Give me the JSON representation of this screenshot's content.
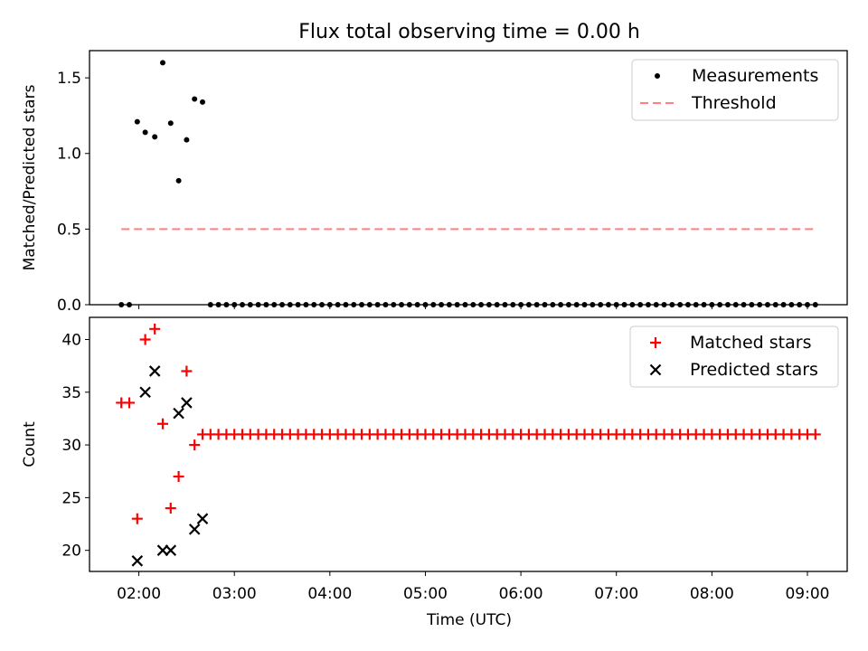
{
  "chart_data": {
    "type": "scatter",
    "title": "Flux total observing time = 0.00 h",
    "xlabel": "Time (UTC)",
    "x_unit": "hours UTC",
    "xlim": [
      "01:29",
      "09:25"
    ],
    "x_ticks": [
      {
        "t": "02:00",
        "label": "02:00"
      },
      {
        "t": "03:00",
        "label": "03:00"
      },
      {
        "t": "04:00",
        "label": "04:00"
      },
      {
        "t": "05:00",
        "label": "05:00"
      },
      {
        "t": "06:00",
        "label": "06:00"
      },
      {
        "t": "07:00",
        "label": "07:00"
      },
      {
        "t": "08:00",
        "label": "08:00"
      },
      {
        "t": "09:00",
        "label": "09:00"
      }
    ],
    "panels": [
      {
        "ylabel": "Matched/Predicted stars",
        "ylim": [
          0,
          1.68
        ],
        "y_ticks": [
          "0.0",
          "0.5",
          "1.0",
          "1.5"
        ],
        "y_tick_values": [
          0,
          0.5,
          1.0,
          1.5
        ],
        "legend_position": "upper right",
        "series": [
          {
            "name": "Measurements",
            "marker": "dot",
            "color": "#000000",
            "points": [
              [
                "01:49",
                0
              ],
              [
                "01:54",
                0
              ],
              [
                "01:59",
                1.21
              ],
              [
                "02:04",
                1.14
              ],
              [
                "02:10",
                1.11
              ],
              [
                "02:15",
                1.6
              ],
              [
                "02:20",
                1.2
              ],
              [
                "02:25",
                0.82
              ],
              [
                "02:30",
                1.09
              ],
              [
                "02:35",
                1.36
              ],
              [
                "02:40",
                1.34
              ],
              [
                "02:45",
                0
              ],
              [
                "02:50",
                0
              ],
              [
                "02:55",
                0
              ],
              [
                "03:00",
                0
              ],
              [
                "03:05",
                0
              ],
              [
                "03:10",
                0
              ],
              [
                "03:15",
                0
              ],
              [
                "03:20",
                0
              ],
              [
                "03:25",
                0
              ],
              [
                "03:30",
                0
              ],
              [
                "03:35",
                0
              ],
              [
                "03:40",
                0
              ],
              [
                "03:45",
                0
              ],
              [
                "03:50",
                0
              ],
              [
                "03:55",
                0
              ],
              [
                "04:00",
                0
              ],
              [
                "04:05",
                0
              ],
              [
                "04:10",
                0
              ],
              [
                "04:15",
                0
              ],
              [
                "04:20",
                0
              ],
              [
                "04:25",
                0
              ],
              [
                "04:30",
                0
              ],
              [
                "04:35",
                0
              ],
              [
                "04:40",
                0
              ],
              [
                "04:45",
                0
              ],
              [
                "04:50",
                0
              ],
              [
                "04:55",
                0
              ],
              [
                "05:00",
                0
              ],
              [
                "05:05",
                0
              ],
              [
                "05:10",
                0
              ],
              [
                "05:15",
                0
              ],
              [
                "05:20",
                0
              ],
              [
                "05:25",
                0
              ],
              [
                "05:30",
                0
              ],
              [
                "05:35",
                0
              ],
              [
                "05:40",
                0
              ],
              [
                "05:45",
                0
              ],
              [
                "05:50",
                0
              ],
              [
                "05:55",
                0
              ],
              [
                "06:00",
                0
              ],
              [
                "06:05",
                0
              ],
              [
                "06:10",
                0
              ],
              [
                "06:15",
                0
              ],
              [
                "06:20",
                0
              ],
              [
                "06:25",
                0
              ],
              [
                "06:30",
                0
              ],
              [
                "06:35",
                0
              ],
              [
                "06:40",
                0
              ],
              [
                "06:45",
                0
              ],
              [
                "06:50",
                0
              ],
              [
                "06:55",
                0
              ],
              [
                "07:00",
                0
              ],
              [
                "07:05",
                0
              ],
              [
                "07:10",
                0
              ],
              [
                "07:15",
                0
              ],
              [
                "07:20",
                0
              ],
              [
                "07:25",
                0
              ],
              [
                "07:30",
                0
              ],
              [
                "07:35",
                0
              ],
              [
                "07:40",
                0
              ],
              [
                "07:45",
                0
              ],
              [
                "07:50",
                0
              ],
              [
                "07:55",
                0
              ],
              [
                "08:00",
                0
              ],
              [
                "08:05",
                0
              ],
              [
                "08:10",
                0
              ],
              [
                "08:15",
                0
              ],
              [
                "08:20",
                0
              ],
              [
                "08:25",
                0
              ],
              [
                "08:30",
                0
              ],
              [
                "08:35",
                0
              ],
              [
                "08:40",
                0
              ],
              [
                "08:45",
                0
              ],
              [
                "08:50",
                0
              ],
              [
                "08:55",
                0
              ],
              [
                "09:00",
                0
              ],
              [
                "09:05",
                0
              ]
            ]
          },
          {
            "name": "Threshold",
            "marker": "dashed-line",
            "color": "#ff8080",
            "points": [
              [
                "01:49",
                0.5
              ],
              [
                "09:05",
                0.5
              ]
            ]
          }
        ]
      },
      {
        "ylabel": "Count",
        "ylim": [
          18,
          42.1
        ],
        "y_ticks": [
          "20",
          "25",
          "30",
          "35",
          "40"
        ],
        "y_tick_values": [
          20,
          25,
          30,
          35,
          40
        ],
        "legend_position": "upper right",
        "series": [
          {
            "name": "Matched stars",
            "marker": "plus",
            "color": "#ff0000",
            "points": [
              [
                "01:49",
                34
              ],
              [
                "01:54",
                34
              ],
              [
                "01:59",
                23
              ],
              [
                "02:04",
                40
              ],
              [
                "02:10",
                41
              ],
              [
                "02:15",
                32
              ],
              [
                "02:20",
                24
              ],
              [
                "02:25",
                27
              ],
              [
                "02:30",
                37
              ],
              [
                "02:35",
                30
              ],
              [
                "02:40",
                31
              ],
              [
                "02:45",
                31
              ],
              [
                "02:50",
                31
              ],
              [
                "02:55",
                31
              ],
              [
                "03:00",
                31
              ],
              [
                "03:05",
                31
              ],
              [
                "03:10",
                31
              ],
              [
                "03:15",
                31
              ],
              [
                "03:20",
                31
              ],
              [
                "03:25",
                31
              ],
              [
                "03:30",
                31
              ],
              [
                "03:35",
                31
              ],
              [
                "03:40",
                31
              ],
              [
                "03:45",
                31
              ],
              [
                "03:50",
                31
              ],
              [
                "03:55",
                31
              ],
              [
                "04:00",
                31
              ],
              [
                "04:05",
                31
              ],
              [
                "04:10",
                31
              ],
              [
                "04:15",
                31
              ],
              [
                "04:20",
                31
              ],
              [
                "04:25",
                31
              ],
              [
                "04:30",
                31
              ],
              [
                "04:35",
                31
              ],
              [
                "04:40",
                31
              ],
              [
                "04:45",
                31
              ],
              [
                "04:50",
                31
              ],
              [
                "04:55",
                31
              ],
              [
                "05:00",
                31
              ],
              [
                "05:05",
                31
              ],
              [
                "05:10",
                31
              ],
              [
                "05:15",
                31
              ],
              [
                "05:20",
                31
              ],
              [
                "05:25",
                31
              ],
              [
                "05:30",
                31
              ],
              [
                "05:35",
                31
              ],
              [
                "05:40",
                31
              ],
              [
                "05:45",
                31
              ],
              [
                "05:50",
                31
              ],
              [
                "05:55",
                31
              ],
              [
                "06:00",
                31
              ],
              [
                "06:05",
                31
              ],
              [
                "06:10",
                31
              ],
              [
                "06:15",
                31
              ],
              [
                "06:20",
                31
              ],
              [
                "06:25",
                31
              ],
              [
                "06:30",
                31
              ],
              [
                "06:35",
                31
              ],
              [
                "06:40",
                31
              ],
              [
                "06:45",
                31
              ],
              [
                "06:50",
                31
              ],
              [
                "06:55",
                31
              ],
              [
                "07:00",
                31
              ],
              [
                "07:05",
                31
              ],
              [
                "07:10",
                31
              ],
              [
                "07:15",
                31
              ],
              [
                "07:20",
                31
              ],
              [
                "07:25",
                31
              ],
              [
                "07:30",
                31
              ],
              [
                "07:35",
                31
              ],
              [
                "07:40",
                31
              ],
              [
                "07:45",
                31
              ],
              [
                "07:50",
                31
              ],
              [
                "07:55",
                31
              ],
              [
                "08:00",
                31
              ],
              [
                "08:05",
                31
              ],
              [
                "08:10",
                31
              ],
              [
                "08:15",
                31
              ],
              [
                "08:20",
                31
              ],
              [
                "08:25",
                31
              ],
              [
                "08:30",
                31
              ],
              [
                "08:35",
                31
              ],
              [
                "08:40",
                31
              ],
              [
                "08:45",
                31
              ],
              [
                "08:50",
                31
              ],
              [
                "08:55",
                31
              ],
              [
                "09:00",
                31
              ],
              [
                "09:05",
                31
              ]
            ]
          },
          {
            "name": "Predicted stars",
            "marker": "x",
            "color": "#000000",
            "points": [
              [
                "01:59",
                19
              ],
              [
                "02:04",
                35
              ],
              [
                "02:10",
                37
              ],
              [
                "02:15",
                20
              ],
              [
                "02:20",
                20
              ],
              [
                "02:25",
                33
              ],
              [
                "02:30",
                34
              ],
              [
                "02:35",
                22
              ],
              [
                "02:40",
                23
              ]
            ]
          }
        ]
      }
    ]
  }
}
